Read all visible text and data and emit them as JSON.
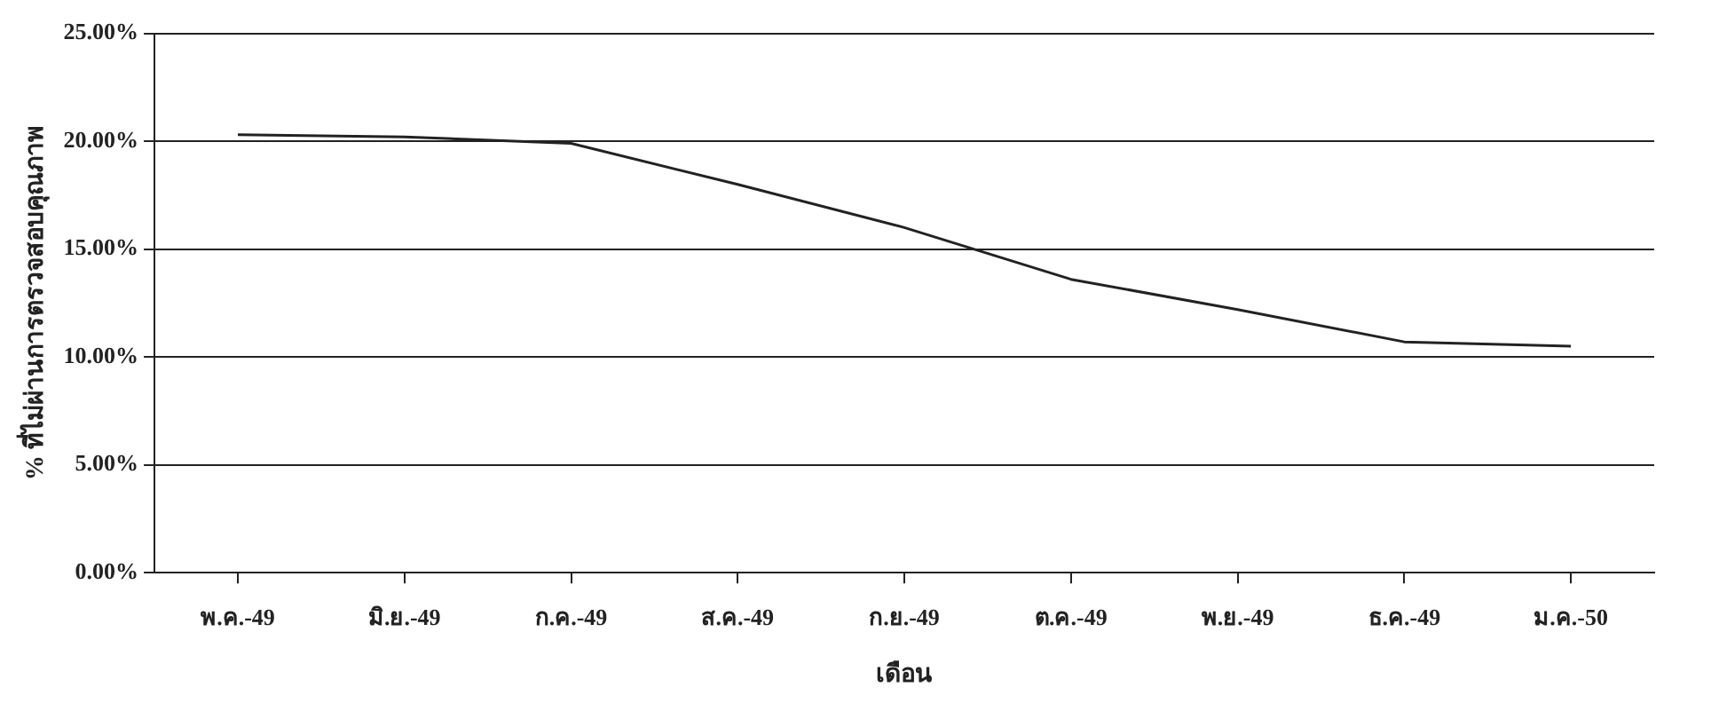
{
  "chart_data": {
    "type": "line",
    "xlabel": "เดือน",
    "ylabel": "% ที่ไม่ผ่านการตรวจสอบคุณภาพ",
    "categories": [
      "พ.ค.-49",
      "มิ.ย.-49",
      "ก.ค.-49",
      "ส.ค.-49",
      "ก.ย.-49",
      "ต.ค.-49",
      "พ.ย.-49",
      "ธ.ค.-49",
      "ม.ค.-50"
    ],
    "series": [
      {
        "color": "#222222",
        "values": [
          20.3,
          20.2,
          19.9,
          18.0,
          16.0,
          13.6,
          12.2,
          10.7,
          10.5
        ]
      }
    ],
    "ylim": [
      0,
      25
    ],
    "yticks": [
      {
        "value": 0,
        "label": "0.00%"
      },
      {
        "value": 5,
        "label": "5.00%"
      },
      {
        "value": 10,
        "label": "10.00%"
      },
      {
        "value": 15,
        "label": "15.00%"
      },
      {
        "value": 20,
        "label": "20.00%"
      },
      {
        "value": 25,
        "label": "25.00%"
      }
    ],
    "grid": "y",
    "legend": false,
    "marker": "none",
    "line_style": "solid"
  }
}
